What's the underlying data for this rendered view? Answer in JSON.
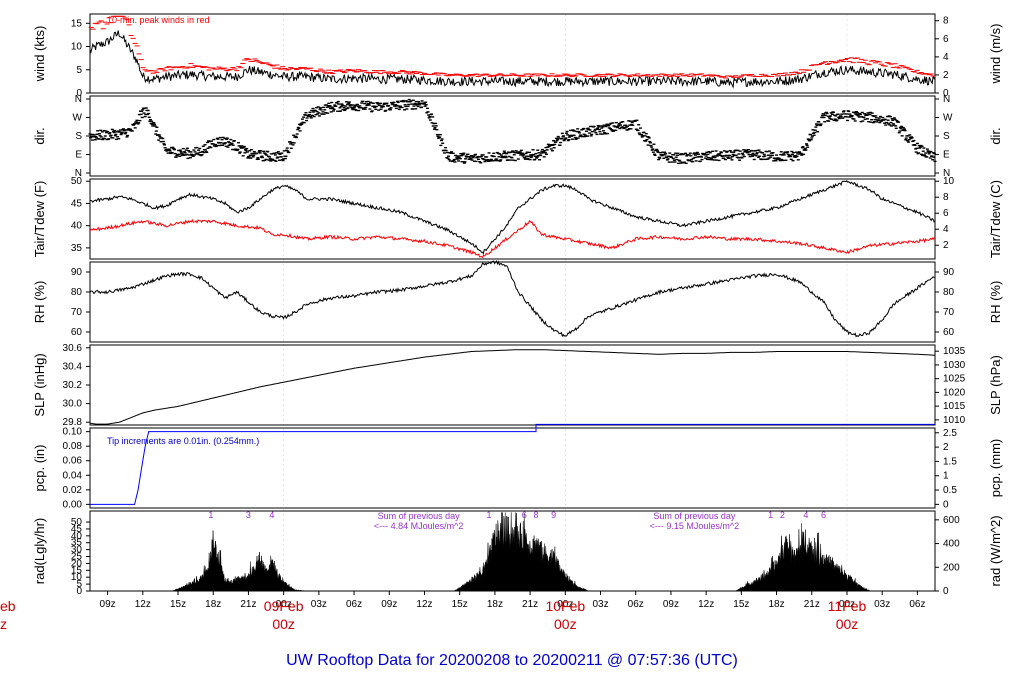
{
  "chart_data": {
    "type": "line",
    "title": "UW Rooftop Data for 20200208  to  20200211 @ 07:57:36  (UTC)",
    "time_axis": {
      "range_hours": [
        7.5,
        79.5
      ],
      "ticks": [
        "09z",
        "12z",
        "15z",
        "18z",
        "21z",
        "00z",
        "03z",
        "06z",
        "09z",
        "12z",
        "15z",
        "18z",
        "21z",
        "00z",
        "03z",
        "06z",
        "09z",
        "12z",
        "15z",
        "18z",
        "21z",
        "00z",
        "03z",
        "06z"
      ],
      "day_labels": [
        {
          "date": "09Feb",
          "time": "00z",
          "hour": 24
        },
        {
          "date": "10Feb",
          "time": "00z",
          "hour": 48
        },
        {
          "date": "11Feb",
          "time": "00z",
          "hour": 72
        }
      ],
      "clipped_left_label": {
        "date": "eb",
        "time": "z"
      }
    },
    "panels": [
      {
        "id": "wind",
        "ylabel_left": "wind (kts)",
        "ylabel_right": "wind (m/s)",
        "ylim": [
          0,
          17
        ],
        "yticks": [
          0,
          5,
          10,
          15
        ],
        "right_ylim_ms": [
          0,
          8.75
        ],
        "right_yticks": [
          0,
          2,
          4,
          6,
          8
        ],
        "annotation": "10-min. peak winds in red",
        "series": [
          {
            "color": "#000000",
            "x": [
              7.5,
              8,
              9,
              9.5,
              10,
              10.5,
              11,
              11.5,
              12,
              13,
              14,
              16,
              18,
              20,
              21,
              22,
              24,
              26,
              28,
              30,
              32,
              34,
              36,
              38,
              40,
              42,
              44,
              46,
              48,
              50,
              52,
              54,
              56,
              58,
              60,
              62,
              64,
              66,
              68,
              70,
              72,
              74,
              76,
              78,
              79.5
            ],
            "y": [
              9,
              10,
              11,
              12,
              13,
              11,
              9,
              7,
              3.5,
              3,
              3.5,
              4,
              3.5,
              3.5,
              5,
              4.5,
              3.5,
              3.5,
              3,
              3.2,
              3,
              3,
              2.8,
              2.5,
              2.5,
              2.5,
              2.5,
              2.5,
              2.5,
              2.5,
              2.5,
              2.5,
              2.5,
              2.5,
              2.5,
              2.2,
              2.5,
              2.5,
              3,
              4.5,
              5,
              4.5,
              4,
              3,
              2.5
            ]
          }
        ],
        "peak_color": "#ff0000"
      },
      {
        "id": "dir",
        "ylabel_left": "dir.",
        "ylabel_right": "dir.",
        "yticks": [
          "N",
          "E",
          "S",
          "W",
          "N"
        ],
        "series": [
          {
            "color": "#000000",
            "x": [
              7.5,
              9,
              10,
              11,
              11.5,
              12,
              12.5,
              13,
              14,
              15,
              16,
              17,
              18,
              19,
              20,
              21,
              22,
              23,
              24,
              26,
              28,
              30,
              32,
              34,
              36,
              38,
              40,
              42,
              44,
              46,
              48,
              50,
              52,
              54,
              56,
              58,
              60,
              62,
              64,
              66,
              68,
              70,
              72,
              74,
              76,
              78,
              79.5
            ],
            "y": [
              180,
              185,
              190,
              205,
              240,
              300,
              290,
              220,
              110,
              100,
              95,
              105,
              150,
              155,
              130,
              90,
              85,
              80,
              80,
              280,
              320,
              330,
              320,
              330,
              340,
              80,
              70,
              80,
              85,
              90,
              180,
              200,
              220,
              240,
              80,
              70,
              80,
              85,
              90,
              80,
              85,
              270,
              280,
              270,
              250,
              120,
              70
            ]
          }
        ]
      },
      {
        "id": "temp",
        "ylabel_left": "Tair/Tdew (F)",
        "ylabel_right": "Tair/Tdew (C)",
        "ylim": [
          32.5,
          50.5
        ],
        "yticks": [
          35,
          40,
          45,
          50
        ],
        "right_yticks": [
          2,
          4,
          6,
          8,
          10
        ],
        "series": [
          {
            "name": "Tair",
            "color": "#000000",
            "x": [
              7.5,
              9,
              10,
              11,
              12,
              13,
              14,
              15,
              16,
              18,
              19,
              20,
              21,
              22,
              23,
              24,
              25,
              26,
              28,
              30,
              32,
              34,
              36,
              38,
              40,
              41,
              42,
              43,
              44,
              45,
              46,
              47,
              48,
              49,
              50,
              52,
              54,
              56,
              58,
              60,
              62,
              64,
              66,
              68,
              70,
              71,
              72,
              73,
              74,
              75,
              76,
              78,
              79.5
            ],
            "y": [
              45.5,
              46,
              46.5,
              46,
              45,
              44,
              44.5,
              46,
              47,
              46,
              45,
              43,
              44,
              46,
              48,
              49,
              48,
              46,
              46,
              45,
              44,
              43,
              41,
              39,
              36,
              34,
              37,
              40,
              44,
              46,
              48,
              49,
              49,
              48,
              46,
              44,
              42,
              41,
              40,
              41,
              42,
              43,
              44,
              46,
              48,
              49,
              50,
              49,
              48,
              46,
              45,
              43,
              41
            ]
          },
          {
            "name": "Tdew",
            "color": "#ff0000",
            "x": [
              7.5,
              9,
              10,
              11,
              12,
              13,
              14,
              16,
              18,
              20,
              22,
              23,
              24,
              26,
              28,
              30,
              32,
              34,
              36,
              38,
              40,
              41,
              42,
              43,
              44,
              45,
              46,
              48,
              50,
              52,
              54,
              56,
              58,
              60,
              62,
              64,
              66,
              68,
              70,
              72,
              74,
              76,
              78,
              79.5
            ],
            "y": [
              39,
              39.5,
              40,
              40.5,
              41,
              40.5,
              40,
              41,
              41,
              40,
              39.5,
              38,
              38,
              37,
              37.5,
              37,
              37.5,
              37,
              36.5,
              35.5,
              34,
              33,
              35,
              37,
              39,
              41,
              38,
              37,
              36,
              35,
              37,
              37.5,
              37,
              37.5,
              37,
              37,
              36.5,
              36,
              35,
              34,
              35.5,
              36,
              36.5,
              37
            ]
          }
        ]
      },
      {
        "id": "rh",
        "ylabel_left": "RH (%)",
        "ylabel_right": "RH (%)",
        "ylim": [
          55,
          95
        ],
        "yticks": [
          60,
          70,
          80,
          90
        ],
        "right_yticks": [
          60,
          70,
          80,
          90
        ],
        "series": [
          {
            "color": "#000000",
            "x": [
              7.5,
              9,
              10,
              11,
              12,
              13,
              14,
              15,
              16,
              17,
              18,
              19,
              20,
              21,
              22,
              23,
              24,
              25,
              26,
              28,
              30,
              32,
              34,
              36,
              38,
              40,
              41,
              42,
              43,
              44,
              45,
              46,
              47,
              48,
              49,
              50,
              52,
              54,
              56,
              58,
              60,
              62,
              64,
              66,
              68,
              69,
              70,
              71,
              72,
              73,
              74,
              75,
              76,
              78,
              79.5
            ],
            "y": [
              80,
              80,
              81,
              82,
              84,
              86,
              88,
              89,
              89,
              87,
              82,
              77,
              80,
              75,
              70,
              68,
              67,
              70,
              74,
              77,
              78,
              80,
              81,
              83,
              85,
              88,
              94,
              95,
              93,
              80,
              73,
              66,
              61,
              58,
              62,
              68,
              72,
              76,
              80,
              82,
              84,
              86,
              88,
              89,
              85,
              80,
              75,
              66,
              60,
              58,
              60,
              66,
              74,
              82,
              88
            ]
          }
        ]
      },
      {
        "id": "slp",
        "ylabel_left": "SLP (inHg)",
        "ylabel_right": "SLP (hPa)",
        "ylim": [
          29.77,
          30.63
        ],
        "yticks": [
          29.8,
          30.0,
          30.2,
          30.4,
          30.6
        ],
        "right_yticks": [
          1010,
          1015,
          1020,
          1025,
          1030,
          1035
        ],
        "series": [
          {
            "color": "#000000",
            "x": [
              7.5,
              8,
              9,
              10,
              11,
              12,
              13,
              14,
              15,
              16,
              18,
              20,
              22,
              24,
              26,
              28,
              30,
              32,
              34,
              36,
              38,
              40,
              42,
              44,
              46,
              48,
              50,
              52,
              54,
              56,
              58,
              60,
              62,
              64,
              66,
              68,
              70,
              72,
              74,
              76,
              78,
              79.5
            ],
            "y": [
              29.79,
              29.78,
              29.78,
              29.8,
              29.85,
              29.9,
              29.93,
              29.95,
              29.97,
              30.0,
              30.06,
              30.12,
              30.18,
              30.23,
              30.28,
              30.33,
              30.38,
              30.42,
              30.46,
              30.5,
              30.53,
              30.56,
              30.57,
              30.58,
              30.58,
              30.57,
              30.56,
              30.55,
              30.54,
              30.53,
              30.54,
              30.54,
              30.55,
              30.55,
              30.56,
              30.56,
              30.56,
              30.56,
              30.55,
              30.54,
              30.53,
              30.52
            ]
          }
        ]
      },
      {
        "id": "pcp",
        "ylabel_left": "pcp. (in)",
        "ylabel_right": "pcp. (mm)",
        "ylim": [
          -0.005,
          0.105
        ],
        "yticks": [
          0,
          0.02,
          0.04,
          0.06,
          0.08,
          0.1
        ],
        "right_yticks": [
          0,
          0.5,
          1,
          1.5,
          2,
          2.5
        ],
        "annotation": "Tip increments are 0.01in. (0.254mm.)",
        "series": [
          {
            "color": "#0000ff",
            "x": [
              7.5,
              11.3,
              11.6,
              11.9,
              12.2,
              12.5,
              13,
              45.5,
              45.5,
              79.5
            ],
            "y": [
              0,
              0,
              0.02,
              0.05,
              0.08,
              0.1,
              0.1,
              0.1,
              0.11,
              0.11
            ]
          }
        ]
      },
      {
        "id": "rad",
        "ylabel_left": "rad(Lgly/hr)",
        "ylabel_right": "rad (W/m^2)",
        "ylim": [
          0,
          58
        ],
        "yticks": [
          0,
          5,
          10,
          15,
          20,
          25,
          30,
          35,
          40,
          45,
          50
        ],
        "right_yticks": [
          0,
          200,
          400,
          600
        ],
        "annotations": [
          {
            "text": "Sum of previous day",
            "hour": 35.5
          },
          {
            "text": "<--- 4.84 MJoules/m^2",
            "hour": 35.5
          },
          {
            "text": "Sum of previous day",
            "hour": 59
          },
          {
            "text": "<--- 9.15 MJoules/m^2",
            "hour": 59
          }
        ],
        "peak_markers": [
          {
            "label": "1",
            "hour": 17.8
          },
          {
            "label": "3",
            "hour": 21
          },
          {
            "label": "4",
            "hour": 23
          },
          {
            "label": "1",
            "hour": 41.5
          },
          {
            "label": "6",
            "hour": 44.5
          },
          {
            "label": "8",
            "hour": 45.5
          },
          {
            "label": "9",
            "hour": 47
          },
          {
            "label": "1",
            "hour": 65.5
          },
          {
            "label": "2",
            "hour": 66.5
          },
          {
            "label": "4",
            "hour": 68.5
          },
          {
            "label": "6",
            "hour": 70
          }
        ],
        "series": [
          {
            "color": "#000000",
            "type": "area",
            "x": [
              14.5,
              15,
              16,
              17,
              17.5,
              18,
              18.5,
              19,
              19.5,
              20,
              21,
              21.5,
              22,
              22.5,
              23,
              23.5,
              24,
              24.5,
              25,
              26,
              38.5,
              39,
              40,
              41,
              41.5,
              42,
              43,
              44,
              44.5,
              45,
              45.5,
              46,
              47,
              48,
              49,
              50,
              62.5,
              63,
              64,
              65,
              65.5,
              66,
              66.5,
              67,
              67.5,
              68,
              68.5,
              69,
              70,
              71,
              72,
              73,
              74
            ],
            "y": [
              0,
              2,
              6,
              12,
              22,
              45,
              30,
              10,
              8,
              10,
              15,
              20,
              30,
              18,
              28,
              15,
              8,
              4,
              1,
              0,
              0,
              3,
              10,
              18,
              30,
              50,
              55,
              48,
              52,
              40,
              44,
              36,
              30,
              14,
              4,
              0,
              0,
              3,
              8,
              14,
              18,
              25,
              35,
              44,
              30,
              40,
              48,
              38,
              30,
              22,
              14,
              5,
              0
            ]
          }
        ]
      }
    ]
  }
}
